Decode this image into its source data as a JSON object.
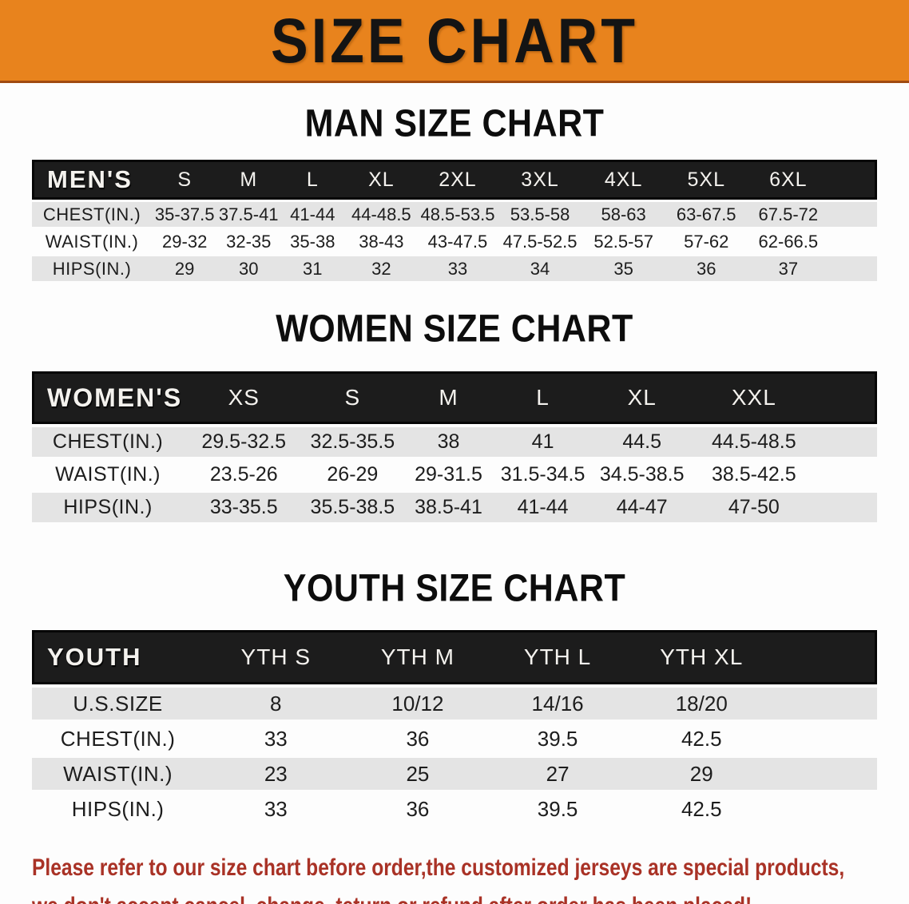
{
  "banner": {
    "title": "SIZE CHART",
    "bg_color": "#E8831D"
  },
  "sections": [
    {
      "heading": "MAN SIZE CHART",
      "table": {
        "corner_label": "MEN'S",
        "columns": [
          "S",
          "M",
          "L",
          "XL",
          "2XL",
          "3XL",
          "4XL",
          "5XL",
          "6XL"
        ],
        "rows": [
          {
            "label": "CHEST(IN.)",
            "values": [
              "35-37.5",
              "37.5-41",
              "41-44",
              "44-48.5",
              "48.5-53.5",
              "53.5-58",
              "58-63",
              "63-67.5",
              "67.5-72"
            ]
          },
          {
            "label": "WAIST(IN.)",
            "values": [
              "29-32",
              "32-35",
              "35-38",
              "38-43",
              "43-47.5",
              "47.5-52.5",
              "52.5-57",
              "57-62",
              "62-66.5"
            ]
          },
          {
            "label": "HIPS(IN.)",
            "values": [
              "29",
              "30",
              "31",
              "32",
              "33",
              "34",
              "35",
              "36",
              "37"
            ]
          }
        ]
      }
    },
    {
      "heading": "WOMEN SIZE CHART",
      "table": {
        "corner_label": "WOMEN'S",
        "columns": [
          "XS",
          "S",
          "M",
          "L",
          "XL",
          "XXL"
        ],
        "rows": [
          {
            "label": "CHEST(IN.)",
            "values": [
              "29.5-32.5",
              "32.5-35.5",
              "38",
              "41",
              "44.5",
              "44.5-48.5"
            ]
          },
          {
            "label": "WAIST(IN.)",
            "values": [
              "23.5-26",
              "26-29",
              "29-31.5",
              "31.5-34.5",
              "34.5-38.5",
              "38.5-42.5"
            ]
          },
          {
            "label": "HIPS(IN.)",
            "values": [
              "33-35.5",
              "35.5-38.5",
              "38.5-41",
              "41-44",
              "44-47",
              "47-50"
            ]
          }
        ]
      }
    },
    {
      "heading": "YOUTH SIZE CHART",
      "table": {
        "corner_label": "YOUTH",
        "columns": [
          "YTH S",
          "YTH M",
          "YTH L",
          "YTH XL"
        ],
        "rows": [
          {
            "label": "U.S.SIZE",
            "values": [
              "8",
              "10/12",
              "14/16",
              "18/20"
            ]
          },
          {
            "label": "CHEST(IN.)",
            "values": [
              "33",
              "36",
              "39.5",
              "42.5"
            ]
          },
          {
            "label": "WAIST(IN.)",
            "values": [
              "23",
              "25",
              "27",
              "29"
            ]
          },
          {
            "label": "HIPS(IN.)",
            "values": [
              "33",
              "36",
              "39.5",
              "42.5"
            ]
          }
        ]
      }
    }
  ],
  "footer": {
    "line1": "Please refer to our size chart before order,the customized jerseys are special products,",
    "line2": "we don't accept cancel, change, teturn or refund after order has been placed!",
    "text_color": "#A93226"
  },
  "colors": {
    "banner_orange": "#E8831D",
    "table_header_black": "#1C1C1C",
    "row_alt_gray": "#E4E4E4",
    "note_red": "#A93226"
  }
}
